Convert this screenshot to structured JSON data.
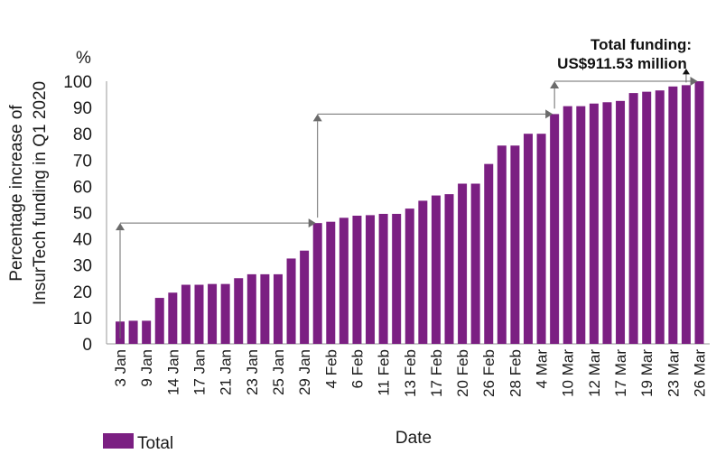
{
  "chart_data": {
    "type": "bar",
    "title": "",
    "ylabel_lines": [
      "Percentage increase of",
      "InsurTech funding in Q1 2020"
    ],
    "y_unit": "%",
    "xlabel": "Date",
    "ylim": [
      0,
      100
    ],
    "y_ticks": [
      0,
      10,
      20,
      30,
      40,
      50,
      60,
      70,
      80,
      90,
      100
    ],
    "tick_labels": [
      "3 Jan",
      "9 Jan",
      "14 Jan",
      "17 Jan",
      "21 Jan",
      "23 Jan",
      "25 Jan",
      "29 Jan",
      "4 Feb",
      "6 Feb",
      "11 Feb",
      "13 Feb",
      "17 Feb",
      "20 Feb",
      "26 Feb",
      "28 Feb",
      "4 Mar",
      "10 Mar",
      "12 Mar",
      "17 Mar",
      "19 Mar",
      "23 Mar",
      "26 Mar"
    ],
    "tick_every": 2,
    "values": [
      8.5,
      8.8,
      8.8,
      17.5,
      19.5,
      22.5,
      22.5,
      22.8,
      22.8,
      25,
      26.5,
      26.5,
      26.5,
      32.5,
      35.5,
      46,
      46.5,
      48,
      48.8,
      49,
      49.5,
      49.5,
      51.5,
      54.5,
      56.5,
      57,
      61,
      61,
      68.5,
      75.5,
      75.5,
      80,
      80,
      87.5,
      90.5,
      90.5,
      91.5,
      92,
      92.5,
      95.5,
      96,
      96.5,
      98,
      98.5,
      100
    ],
    "series": [
      {
        "name": "Total",
        "color": "#7b1f82"
      }
    ],
    "legend_position": "bottom-left",
    "annotation_lines": [
      "Total funding:",
      "US$911.53 million"
    ],
    "grid": false
  }
}
